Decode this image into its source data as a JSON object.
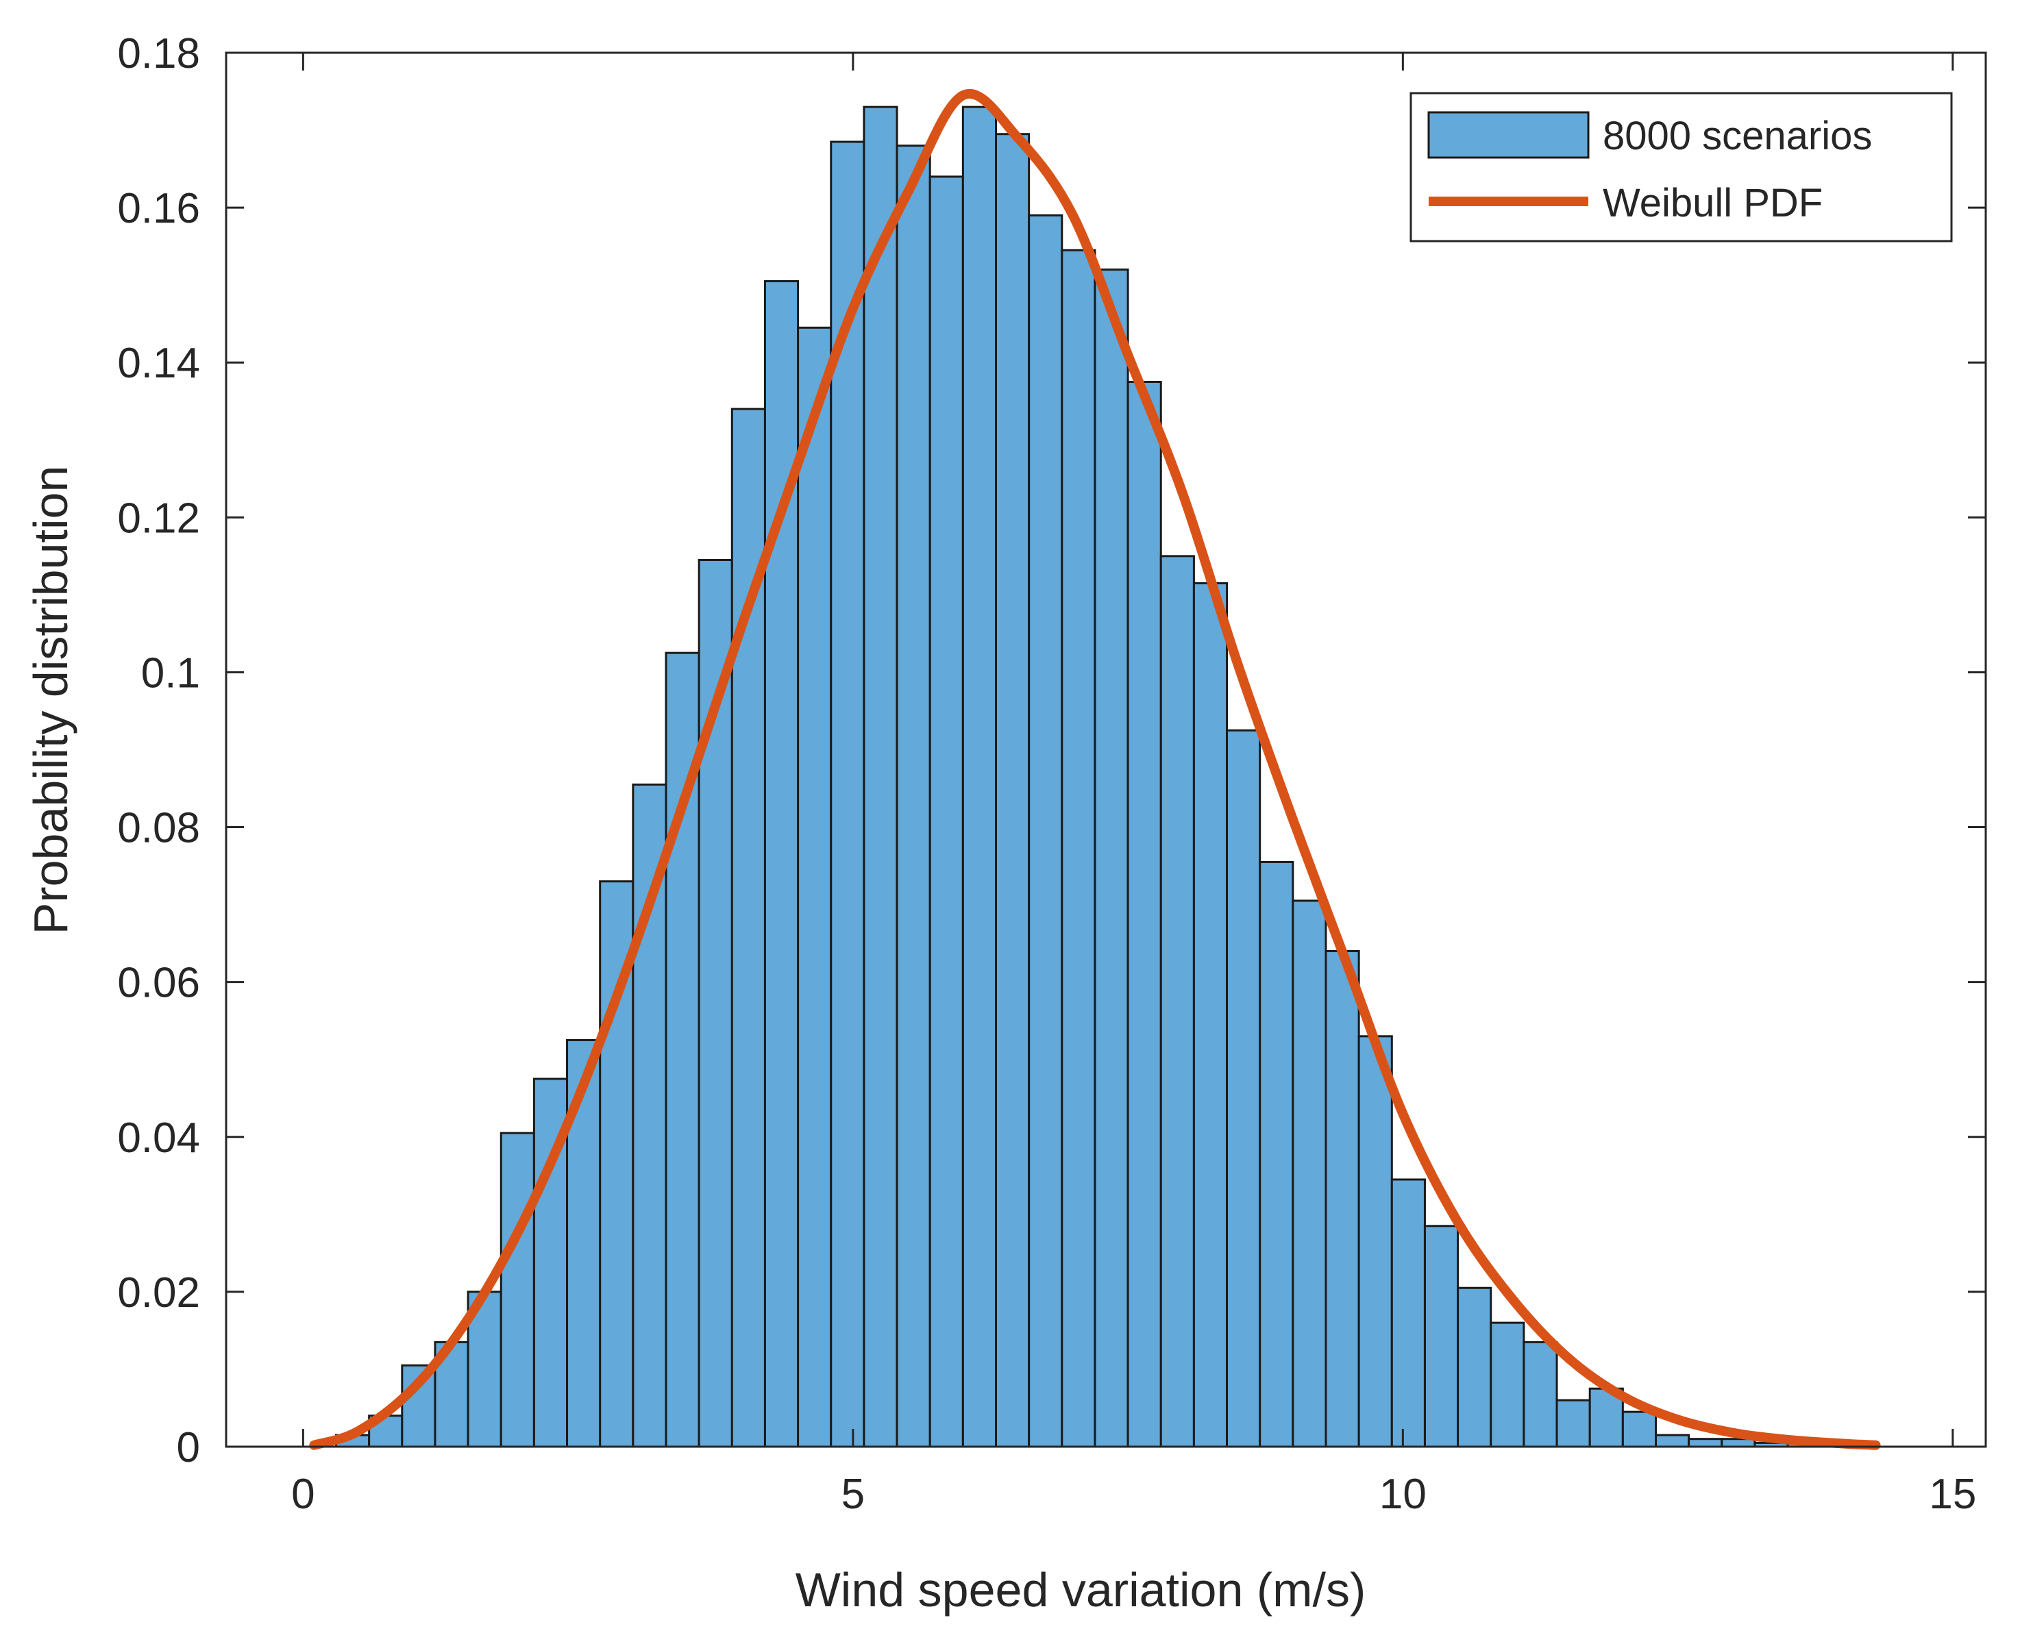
{
  "colors": {
    "bar_fill": "#63a9d9",
    "bar_edge": "#1a1a1a",
    "curve": "#d95319",
    "axis": "#262626",
    "background": "#ffffff"
  },
  "chart_data": {
    "type": "bar",
    "subtype": "histogram-with-fitted-curve",
    "title": "",
    "xlabel": "Wind speed variation (m/s)",
    "ylabel": "Probability distribution",
    "xlim": [
      -0.7,
      15.3
    ],
    "ylim": [
      0,
      0.18
    ],
    "xticks": [
      0,
      5,
      10,
      15
    ],
    "xtick_labels": [
      "0",
      "5",
      "10",
      "15"
    ],
    "yticks": [
      0,
      0.02,
      0.04,
      0.06,
      0.08,
      0.1,
      0.12,
      0.14,
      0.16,
      0.18
    ],
    "ytick_labels": [
      "0",
      "0.02",
      "0.04",
      "0.06",
      "0.08",
      "0.1",
      "0.12",
      "0.14",
      "0.16",
      "0.18"
    ],
    "grid": false,
    "box": true,
    "legend": {
      "location": "top-right",
      "entries": [
        {
          "label": "8000 scenarios",
          "kind": "bar"
        },
        {
          "label": "Weibull PDF",
          "kind": "line"
        }
      ]
    },
    "histogram": {
      "name": "8000 scenarios",
      "bin_edges_start": 0.3,
      "bin_width": 0.3,
      "values": [
        0.0015,
        0.004,
        0.0105,
        0.0135,
        0.02,
        0.0405,
        0.0475,
        0.0525,
        0.073,
        0.0855,
        0.1025,
        0.1145,
        0.134,
        0.1505,
        0.1445,
        0.1685,
        0.173,
        0.168,
        0.164,
        0.173,
        0.1695,
        0.159,
        0.1545,
        0.152,
        0.1375,
        0.115,
        0.1115,
        0.0925,
        0.0755,
        0.0705,
        0.064,
        0.053,
        0.0345,
        0.0285,
        0.0205,
        0.016,
        0.0135,
        0.006,
        0.0075,
        0.0045,
        0.0015,
        0.001,
        0.001,
        0.0005,
        0.0005
      ]
    },
    "series": [
      {
        "name": "Weibull PDF",
        "type": "line",
        "x": [
          0.1,
          0.5,
          1.0,
          1.5,
          2.0,
          2.5,
          3.0,
          3.5,
          4.0,
          4.5,
          5.0,
          5.5,
          6.0,
          6.5,
          7.0,
          7.5,
          8.0,
          8.5,
          9.0,
          9.5,
          10.0,
          10.5,
          11.0,
          11.5,
          12.0,
          12.5,
          13.0,
          13.5,
          14.0,
          14.3
        ],
        "y": [
          0.0002,
          0.002,
          0.0075,
          0.0165,
          0.029,
          0.045,
          0.064,
          0.085,
          0.1065,
          0.127,
          0.147,
          0.162,
          0.1745,
          0.169,
          0.159,
          0.141,
          0.123,
          0.101,
          0.081,
          0.062,
          0.043,
          0.029,
          0.019,
          0.0115,
          0.0065,
          0.0035,
          0.0018,
          0.0009,
          0.0004,
          0.0002
        ]
      }
    ]
  }
}
